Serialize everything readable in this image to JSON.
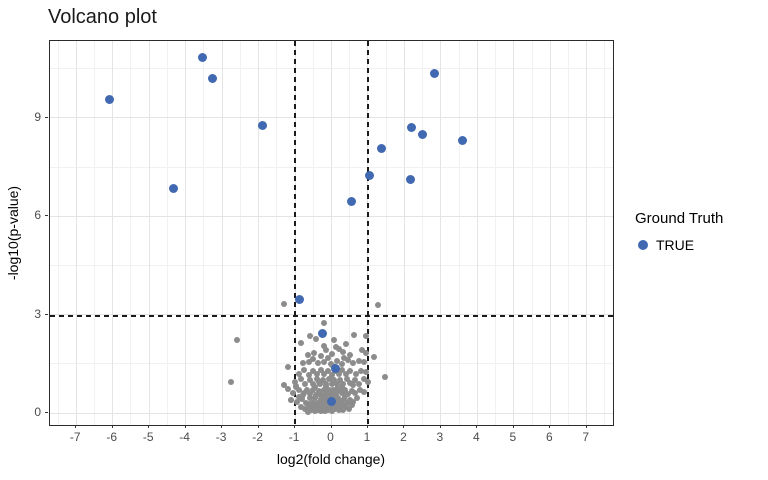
{
  "title": "Volcano plot",
  "legend": {
    "title": "Ground Truth",
    "items": [
      {
        "label": "TRUE",
        "color": "#4169b2"
      }
    ]
  },
  "colors": {
    "true_point": "#4169b2",
    "other_point": "#8c8c8c",
    "major_grid": "#e4e4e4",
    "minor_grid": "#f1f1f1",
    "panel_border": "#2b2b2b",
    "tick_text": "#4d4d4d",
    "threshold_line": "#1a1a1a"
  },
  "chart_data": {
    "type": "scatter",
    "title": "Volcano plot",
    "xlabel": "log2(fold change)",
    "ylabel": "-log10(p-value)",
    "xlim": [
      -7.72,
      7.72
    ],
    "ylim": [
      -0.36,
      11.34
    ],
    "x_ticks": [
      -7,
      -6,
      -5,
      -4,
      -3,
      -2,
      -1,
      0,
      1,
      2,
      3,
      4,
      5,
      6,
      7
    ],
    "y_ticks": [
      0,
      3,
      6,
      9
    ],
    "x_minor": [
      -7.5,
      -6.5,
      -5.5,
      -4.5,
      -3.5,
      -2.5,
      -1.5,
      -0.5,
      0.5,
      1.5,
      2.5,
      3.5,
      4.5,
      5.5,
      6.5,
      7.5
    ],
    "y_minor": [
      1.5,
      4.5,
      7.5,
      10.5
    ],
    "grid": true,
    "legend_position": "right",
    "vlines": [
      -1,
      1
    ],
    "hlines": [
      2.96
    ],
    "series": [
      {
        "name": "",
        "color": "#8c8c8c",
        "diameter": 6,
        "points": [
          [
            -0.72,
            0.12
          ],
          [
            -0.63,
            0.2
          ],
          [
            -0.55,
            0.1
          ],
          [
            -0.5,
            0.22
          ],
          [
            -0.45,
            0.08
          ],
          [
            -0.4,
            0.18
          ],
          [
            -0.36,
            0.1
          ],
          [
            -0.3,
            0.24
          ],
          [
            -0.28,
            0.08
          ],
          [
            -0.22,
            0.16
          ],
          [
            -0.18,
            0.06
          ],
          [
            -0.15,
            0.2
          ],
          [
            -0.1,
            0.1
          ],
          [
            -0.05,
            0.22
          ],
          [
            0.0,
            0.08
          ],
          [
            0.04,
            0.18
          ],
          [
            0.1,
            0.12
          ],
          [
            0.15,
            0.22
          ],
          [
            0.2,
            0.1
          ],
          [
            0.26,
            0.18
          ],
          [
            0.32,
            0.1
          ],
          [
            0.4,
            0.2
          ],
          [
            0.48,
            0.12
          ],
          [
            -0.85,
            0.18
          ],
          [
            0.55,
            0.25
          ],
          [
            -0.95,
            0.35
          ],
          [
            -0.8,
            0.42
          ],
          [
            -0.7,
            0.3
          ],
          [
            -0.6,
            0.45
          ],
          [
            -0.52,
            0.32
          ],
          [
            -0.44,
            0.45
          ],
          [
            -0.38,
            0.3
          ],
          [
            -0.3,
            0.42
          ],
          [
            -0.24,
            0.3
          ],
          [
            -0.18,
            0.45
          ],
          [
            -0.12,
            0.32
          ],
          [
            -0.06,
            0.44
          ],
          [
            0.0,
            0.3
          ],
          [
            0.06,
            0.42
          ],
          [
            0.12,
            0.3
          ],
          [
            0.18,
            0.45
          ],
          [
            0.25,
            0.33
          ],
          [
            0.33,
            0.44
          ],
          [
            0.42,
            0.3
          ],
          [
            0.5,
            0.4
          ],
          [
            0.6,
            0.35
          ],
          [
            -1.1,
            0.4
          ],
          [
            0.7,
            0.45
          ],
          [
            -0.88,
            0.48
          ],
          [
            0.05,
            0.48
          ],
          [
            -1.05,
            0.62
          ],
          [
            -0.9,
            0.72
          ],
          [
            -0.78,
            0.55
          ],
          [
            -0.68,
            0.7
          ],
          [
            -0.58,
            0.58
          ],
          [
            -0.5,
            0.72
          ],
          [
            -0.42,
            0.55
          ],
          [
            -0.35,
            0.68
          ],
          [
            -0.28,
            0.55
          ],
          [
            -0.2,
            0.72
          ],
          [
            -0.14,
            0.58
          ],
          [
            -0.08,
            0.7
          ],
          [
            -0.02,
            0.56
          ],
          [
            0.05,
            0.7
          ],
          [
            0.12,
            0.58
          ],
          [
            0.2,
            0.72
          ],
          [
            0.28,
            0.6
          ],
          [
            0.36,
            0.7
          ],
          [
            0.45,
            0.58
          ],
          [
            0.55,
            0.68
          ],
          [
            0.65,
            0.6
          ],
          [
            0.78,
            0.72
          ],
          [
            -1.18,
            0.75
          ],
          [
            0.9,
            0.65
          ],
          [
            -0.97,
            0.8
          ],
          [
            -1.0,
            0.95
          ],
          [
            -0.85,
            1.05
          ],
          [
            -0.72,
            0.88
          ],
          [
            -0.6,
            1.0
          ],
          [
            -0.5,
            0.9
          ],
          [
            -0.4,
            1.05
          ],
          [
            -0.32,
            0.88
          ],
          [
            -0.24,
            1.0
          ],
          [
            -0.16,
            0.9
          ],
          [
            -0.08,
            1.05
          ],
          [
            0.0,
            0.9
          ],
          [
            0.08,
            1.02
          ],
          [
            0.16,
            0.88
          ],
          [
            0.24,
            1.0
          ],
          [
            0.32,
            0.9
          ],
          [
            0.42,
            1.05
          ],
          [
            0.52,
            0.92
          ],
          [
            0.64,
            1.0
          ],
          [
            0.76,
            0.9
          ],
          [
            -1.29,
            0.86
          ],
          [
            -0.97,
            0.83
          ],
          [
            -1.11,
            0.4
          ],
          [
            0.88,
            1.05
          ],
          [
            1.0,
            0.95
          ],
          [
            -0.9,
            1.2
          ],
          [
            -0.75,
            1.32
          ],
          [
            -0.62,
            1.15
          ],
          [
            -0.5,
            1.3
          ],
          [
            -0.4,
            1.18
          ],
          [
            -0.3,
            1.32
          ],
          [
            -0.2,
            1.18
          ],
          [
            -0.1,
            1.3
          ],
          [
            0.0,
            1.15
          ],
          [
            0.1,
            1.28
          ],
          [
            0.2,
            1.18
          ],
          [
            0.3,
            1.32
          ],
          [
            0.4,
            1.2
          ],
          [
            0.52,
            1.3
          ],
          [
            0.66,
            1.18
          ],
          [
            0.8,
            1.28
          ],
          [
            -1.2,
            1.42
          ],
          [
            1.47,
            1.11
          ],
          [
            0.95,
            1.25
          ],
          [
            -0.79,
            1.52
          ],
          [
            -0.61,
            1.57
          ],
          [
            -0.38,
            1.52
          ],
          [
            -0.2,
            1.57
          ],
          [
            -0.02,
            1.5
          ],
          [
            0.15,
            1.6
          ],
          [
            0.3,
            1.5
          ],
          [
            0.45,
            1.62
          ],
          [
            0.6,
            1.52
          ],
          [
            0.75,
            1.6
          ],
          [
            -0.5,
            1.65
          ],
          [
            -0.1,
            1.68
          ],
          [
            0.05,
            1.45
          ],
          [
            0.35,
            1.68
          ],
          [
            0.9,
            1.55
          ],
          [
            -0.47,
            1.82
          ],
          [
            -0.15,
            1.92
          ],
          [
            0.31,
            1.87
          ],
          [
            0.85,
            1.92
          ],
          [
            0.95,
            1.82
          ],
          [
            1.17,
            1.72
          ],
          [
            -0.65,
            1.78
          ],
          [
            0.0,
            1.8
          ],
          [
            0.5,
            1.78
          ],
          [
            0.2,
            1.95
          ],
          [
            -0.3,
            1.75
          ],
          [
            -0.83,
            2.14
          ],
          [
            -0.42,
            2.25
          ],
          [
            0.08,
            2.23
          ],
          [
            0.63,
            2.38
          ],
          [
            0.12,
            2.02
          ],
          [
            -0.2,
            2.05
          ],
          [
            0.4,
            2.1
          ],
          [
            -0.6,
            2.35
          ],
          [
            0.94,
            2.35
          ],
          [
            -0.2,
            2.74
          ],
          [
            -1.29,
            3.34
          ],
          [
            1.27,
            3.3
          ],
          [
            -2.59,
            2.23
          ],
          [
            -2.75,
            0.96
          ],
          [
            -0.65,
            0.05
          ],
          [
            -0.33,
            0.14
          ],
          [
            -0.08,
            0.14
          ],
          [
            0.3,
            0.26
          ],
          [
            -0.58,
            0.28
          ],
          [
            -0.25,
            0.5
          ],
          [
            0.38,
            0.52
          ],
          [
            -0.75,
            0.62
          ],
          [
            0.0,
            0.62
          ],
          [
            -0.45,
            0.8
          ],
          [
            0.3,
            0.8
          ],
          [
            -0.15,
            0.82
          ],
          [
            0.6,
            0.85
          ],
          [
            -0.35,
            0.95
          ],
          [
            0.15,
            0.75
          ]
        ]
      },
      {
        "name": "TRUE",
        "color": "#4169b2",
        "diameter": 9,
        "points": [
          [
            -6.1,
            9.55
          ],
          [
            -3.55,
            10.85
          ],
          [
            -3.25,
            10.2
          ],
          [
            -4.32,
            6.86
          ],
          [
            -1.88,
            8.78
          ],
          [
            2.83,
            10.35
          ],
          [
            2.2,
            8.71
          ],
          [
            2.49,
            8.48
          ],
          [
            3.58,
            8.3
          ],
          [
            1.37,
            8.05
          ],
          [
            1.03,
            7.25
          ],
          [
            2.18,
            7.12
          ],
          [
            0.55,
            6.45
          ],
          [
            -0.88,
            3.45
          ],
          [
            -0.25,
            2.42
          ],
          [
            0.12,
            1.35
          ],
          [
            0.0,
            0.35
          ]
        ]
      }
    ]
  }
}
